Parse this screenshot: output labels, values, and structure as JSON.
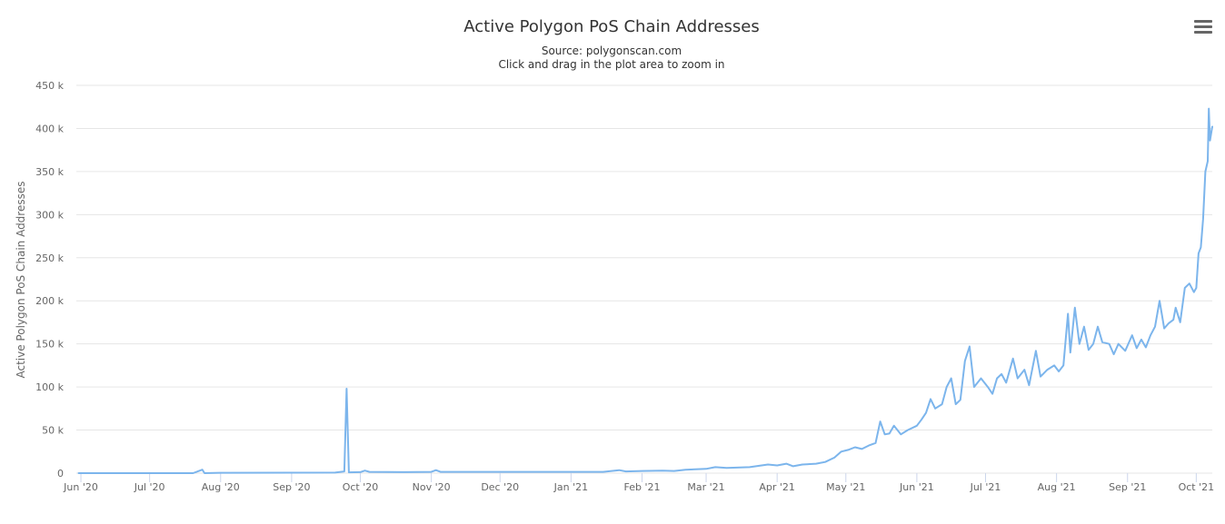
{
  "chart_data": {
    "type": "line",
    "title": "Active Polygon PoS Chain Addresses",
    "subtitle_lines": [
      "Source: polygonscan.com",
      "Click and drag in the plot area to zoom in"
    ],
    "xlabel": "",
    "ylabel": "Active Polygon PoS Chain Addresses",
    "x_start": "2020-05-30",
    "x_end": "2021-10-08",
    "ylim": [
      0,
      450000
    ],
    "yticks": [
      0,
      50000,
      100000,
      150000,
      200000,
      250000,
      300000,
      350000,
      400000,
      450000
    ],
    "ytick_labels": [
      "0",
      "50 k",
      "100 k",
      "150 k",
      "200 k",
      "250 k",
      "300 k",
      "350 k",
      "400 k",
      "450 k"
    ],
    "xticks": [
      {
        "date": "2020-06-01",
        "label": "Jun '20"
      },
      {
        "date": "2020-07-01",
        "label": "Jul '20"
      },
      {
        "date": "2020-08-01",
        "label": "Aug '20"
      },
      {
        "date": "2020-09-01",
        "label": "Sep '20"
      },
      {
        "date": "2020-10-01",
        "label": "Oct '20"
      },
      {
        "date": "2020-11-01",
        "label": "Nov '20"
      },
      {
        "date": "2020-12-01",
        "label": "Dec '20"
      },
      {
        "date": "2021-01-01",
        "label": "Jan '21"
      },
      {
        "date": "2021-02-01",
        "label": "Feb '21"
      },
      {
        "date": "2021-03-01",
        "label": "Mar '21"
      },
      {
        "date": "2021-04-01",
        "label": "Apr '21"
      },
      {
        "date": "2021-05-01",
        "label": "May '21"
      },
      {
        "date": "2021-06-01",
        "label": "Jun '21"
      },
      {
        "date": "2021-07-01",
        "label": "Jul '21"
      },
      {
        "date": "2021-08-01",
        "label": "Aug '21"
      },
      {
        "date": "2021-09-01",
        "label": "Sep '21"
      },
      {
        "date": "2021-10-01",
        "label": "Oct '21"
      }
    ],
    "grid": true,
    "legend": "none",
    "line_color": "#7cb5ec",
    "series": [
      {
        "points": [
          [
            "2020-05-31",
            0
          ],
          [
            "2020-06-15",
            0
          ],
          [
            "2020-07-01",
            0
          ],
          [
            "2020-07-20",
            0
          ],
          [
            "2020-07-24",
            4000
          ],
          [
            "2020-07-25",
            0
          ],
          [
            "2020-08-01",
            400
          ],
          [
            "2020-09-01",
            500
          ],
          [
            "2020-09-20",
            600
          ],
          [
            "2020-09-24",
            2000
          ],
          [
            "2020-09-25",
            98000
          ],
          [
            "2020-09-26",
            1000
          ],
          [
            "2020-10-01",
            1200
          ],
          [
            "2020-10-03",
            3000
          ],
          [
            "2020-10-05",
            1500
          ],
          [
            "2020-10-20",
            1200
          ],
          [
            "2020-11-01",
            1500
          ],
          [
            "2020-11-03",
            3500
          ],
          [
            "2020-11-05",
            1500
          ],
          [
            "2020-12-01",
            1500
          ],
          [
            "2021-01-01",
            1500
          ],
          [
            "2021-01-15",
            1500
          ],
          [
            "2021-01-22",
            3500
          ],
          [
            "2021-01-25",
            2000
          ],
          [
            "2021-02-01",
            2500
          ],
          [
            "2021-02-10",
            3000
          ],
          [
            "2021-02-15",
            2500
          ],
          [
            "2021-02-20",
            4000
          ],
          [
            "2021-03-01",
            5000
          ],
          [
            "2021-03-05",
            7000
          ],
          [
            "2021-03-10",
            6000
          ],
          [
            "2021-03-20",
            7000
          ],
          [
            "2021-03-28",
            10000
          ],
          [
            "2021-04-01",
            9000
          ],
          [
            "2021-04-05",
            11000
          ],
          [
            "2021-04-08",
            8000
          ],
          [
            "2021-04-12",
            10000
          ],
          [
            "2021-04-18",
            11000
          ],
          [
            "2021-04-22",
            13000
          ],
          [
            "2021-04-26",
            18000
          ],
          [
            "2021-04-29",
            25000
          ],
          [
            "2021-05-02",
            27000
          ],
          [
            "2021-05-05",
            30000
          ],
          [
            "2021-05-08",
            28000
          ],
          [
            "2021-05-11",
            32000
          ],
          [
            "2021-05-14",
            35000
          ],
          [
            "2021-05-16",
            60000
          ],
          [
            "2021-05-18",
            45000
          ],
          [
            "2021-05-20",
            46000
          ],
          [
            "2021-05-22",
            55000
          ],
          [
            "2021-05-25",
            45000
          ],
          [
            "2021-05-28",
            50000
          ],
          [
            "2021-06-01",
            55000
          ],
          [
            "2021-06-03",
            62000
          ],
          [
            "2021-06-05",
            70000
          ],
          [
            "2021-06-07",
            86000
          ],
          [
            "2021-06-09",
            75000
          ],
          [
            "2021-06-12",
            80000
          ],
          [
            "2021-06-14",
            100000
          ],
          [
            "2021-06-16",
            110000
          ],
          [
            "2021-06-18",
            80000
          ],
          [
            "2021-06-20",
            85000
          ],
          [
            "2021-06-22",
            130000
          ],
          [
            "2021-06-24",
            147000
          ],
          [
            "2021-06-26",
            100000
          ],
          [
            "2021-06-29",
            110000
          ],
          [
            "2021-07-02",
            100000
          ],
          [
            "2021-07-04",
            92000
          ],
          [
            "2021-07-06",
            110000
          ],
          [
            "2021-07-08",
            115000
          ],
          [
            "2021-07-10",
            105000
          ],
          [
            "2021-07-13",
            133000
          ],
          [
            "2021-07-15",
            110000
          ],
          [
            "2021-07-18",
            120000
          ],
          [
            "2021-07-20",
            102000
          ],
          [
            "2021-07-23",
            142000
          ],
          [
            "2021-07-25",
            112000
          ],
          [
            "2021-07-28",
            120000
          ],
          [
            "2021-07-31",
            125000
          ],
          [
            "2021-08-02",
            118000
          ],
          [
            "2021-08-04",
            125000
          ],
          [
            "2021-08-06",
            185000
          ],
          [
            "2021-08-07",
            140000
          ],
          [
            "2021-08-09",
            192000
          ],
          [
            "2021-08-11",
            150000
          ],
          [
            "2021-08-13",
            170000
          ],
          [
            "2021-08-15",
            143000
          ],
          [
            "2021-08-17",
            150000
          ],
          [
            "2021-08-19",
            170000
          ],
          [
            "2021-08-21",
            152000
          ],
          [
            "2021-08-24",
            150000
          ],
          [
            "2021-08-26",
            138000
          ],
          [
            "2021-08-28",
            150000
          ],
          [
            "2021-08-31",
            142000
          ],
          [
            "2021-09-03",
            160000
          ],
          [
            "2021-09-05",
            145000
          ],
          [
            "2021-09-07",
            155000
          ],
          [
            "2021-09-09",
            146000
          ],
          [
            "2021-09-11",
            160000
          ],
          [
            "2021-09-13",
            170000
          ],
          [
            "2021-09-15",
            200000
          ],
          [
            "2021-09-17",
            168000
          ],
          [
            "2021-09-19",
            174000
          ],
          [
            "2021-09-21",
            178000
          ],
          [
            "2021-09-22",
            192000
          ],
          [
            "2021-09-24",
            175000
          ],
          [
            "2021-09-26",
            215000
          ],
          [
            "2021-09-28",
            220000
          ],
          [
            "2021-09-30",
            210000
          ],
          [
            "2021-10-01",
            215000
          ],
          [
            "2021-10-02",
            255000
          ],
          [
            "2021-10-03",
            262000
          ],
          [
            "2021-10-04",
            295000
          ],
          [
            "2021-10-05",
            350000
          ],
          [
            "2021-10-06",
            362000
          ],
          [
            "2021-10-06T12",
            423000
          ],
          [
            "2021-10-07",
            386000
          ],
          [
            "2021-10-08",
            402000
          ]
        ]
      }
    ]
  },
  "menu": {
    "icon": "hamburger-menu-icon"
  }
}
